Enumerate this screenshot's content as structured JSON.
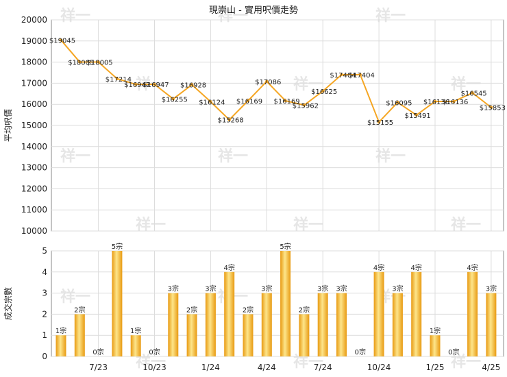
{
  "chart_data": [
    {
      "type": "line",
      "title": "現崇山 - 實用呎價走勢",
      "ylabel": "平均呎價",
      "ylim": [
        10000,
        20000
      ],
      "yticks": [
        10000,
        11000,
        12000,
        13000,
        14000,
        15000,
        16000,
        17000,
        18000,
        19000,
        20000
      ],
      "color": "#f5a623",
      "values": [
        19045,
        18005,
        18005,
        17214,
        16947,
        16947,
        16255,
        16928,
        16124,
        15268,
        16169,
        17086,
        16169,
        15962,
        16625,
        17404,
        17404,
        15155,
        16095,
        15491,
        16136,
        16136,
        16545,
        15853
      ],
      "labels": [
        "$19045",
        "$18005",
        "$18005",
        "$17214",
        "$16947",
        "$16947",
        "$16255",
        "$16928",
        "$16124",
        "$15268",
        "$16169",
        "$17086",
        "$16169",
        "$15962",
        "$16625",
        "$17404",
        "$17404",
        "$15155",
        "$16095",
        "$15491",
        "$16136",
        "$16136",
        "$16545",
        "$15853"
      ]
    },
    {
      "type": "bar",
      "ylabel": "成交宗數",
      "ylim": [
        0,
        5
      ],
      "yticks": [
        0,
        1,
        2,
        3,
        4,
        5
      ],
      "color": "#f5a623",
      "values": [
        1,
        2,
        0,
        5,
        1,
        0,
        3,
        2,
        3,
        4,
        2,
        3,
        5,
        2,
        3,
        3,
        0,
        4,
        3,
        4,
        1,
        0,
        4,
        3
      ],
      "labels": [
        "1宗",
        "2宗",
        "0宗",
        "5宗",
        "1宗",
        "0宗",
        "3宗",
        "2宗",
        "3宗",
        "4宗",
        "2宗",
        "3宗",
        "5宗",
        "2宗",
        "3宗",
        "3宗",
        "0宗",
        "4宗",
        "3宗",
        "4宗",
        "1宗",
        "0宗",
        "4宗",
        "3宗"
      ],
      "xticks": [
        "7/23",
        "10/23",
        "1/24",
        "4/24",
        "7/24",
        "10/24",
        "1/25",
        "4/25"
      ]
    }
  ],
  "watermark": "祥一"
}
